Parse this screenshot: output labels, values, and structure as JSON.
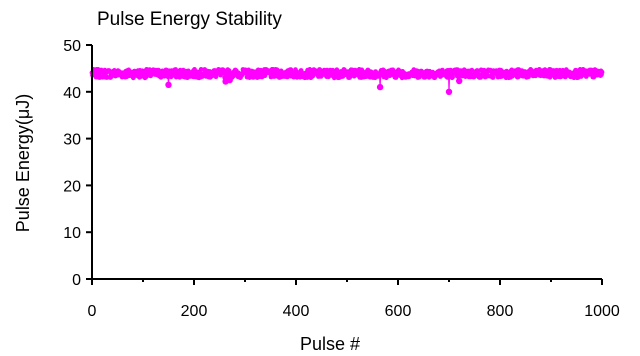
{
  "chart_data": {
    "type": "scatter",
    "title": "Pulse Energy Stability",
    "xlabel": "Pulse #",
    "ylabel": "Pulse Energy(μJ)",
    "xlim": [
      0,
      1000
    ],
    "ylim": [
      0,
      50
    ],
    "x_ticks": [
      "0",
      "200",
      "400",
      "600",
      "800",
      "1000"
    ],
    "y_ticks": [
      "0",
      "10",
      "20",
      "30",
      "40",
      "50"
    ],
    "grid": false,
    "legend": "none",
    "marker_color": "#ff00ff",
    "series": [
      {
        "baseline": 43.9,
        "band": [
          43.0,
          44.8
        ],
        "outliers": [
          {
            "x": 150,
            "y": 41.5
          },
          {
            "x": 262,
            "y": 42.2
          },
          {
            "x": 270,
            "y": 42.5
          },
          {
            "x": 565,
            "y": 41.0
          },
          {
            "x": 700,
            "y": 40.0
          },
          {
            "x": 720,
            "y": 42.3
          }
        ]
      }
    ]
  }
}
